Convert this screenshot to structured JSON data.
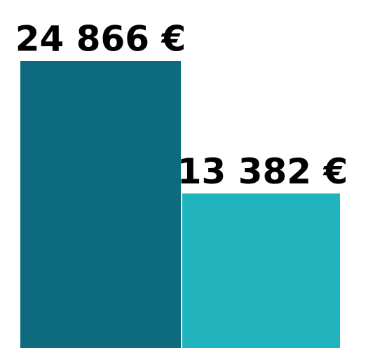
{
  "chart_data": {
    "type": "bar",
    "categories": [
      null,
      null
    ],
    "values": [
      24866,
      13382
    ],
    "value_labels": [
      "24 866 €",
      "13 382 €"
    ],
    "colors": [
      "#0e6b7f",
      "#20b3bb"
    ]
  }
}
